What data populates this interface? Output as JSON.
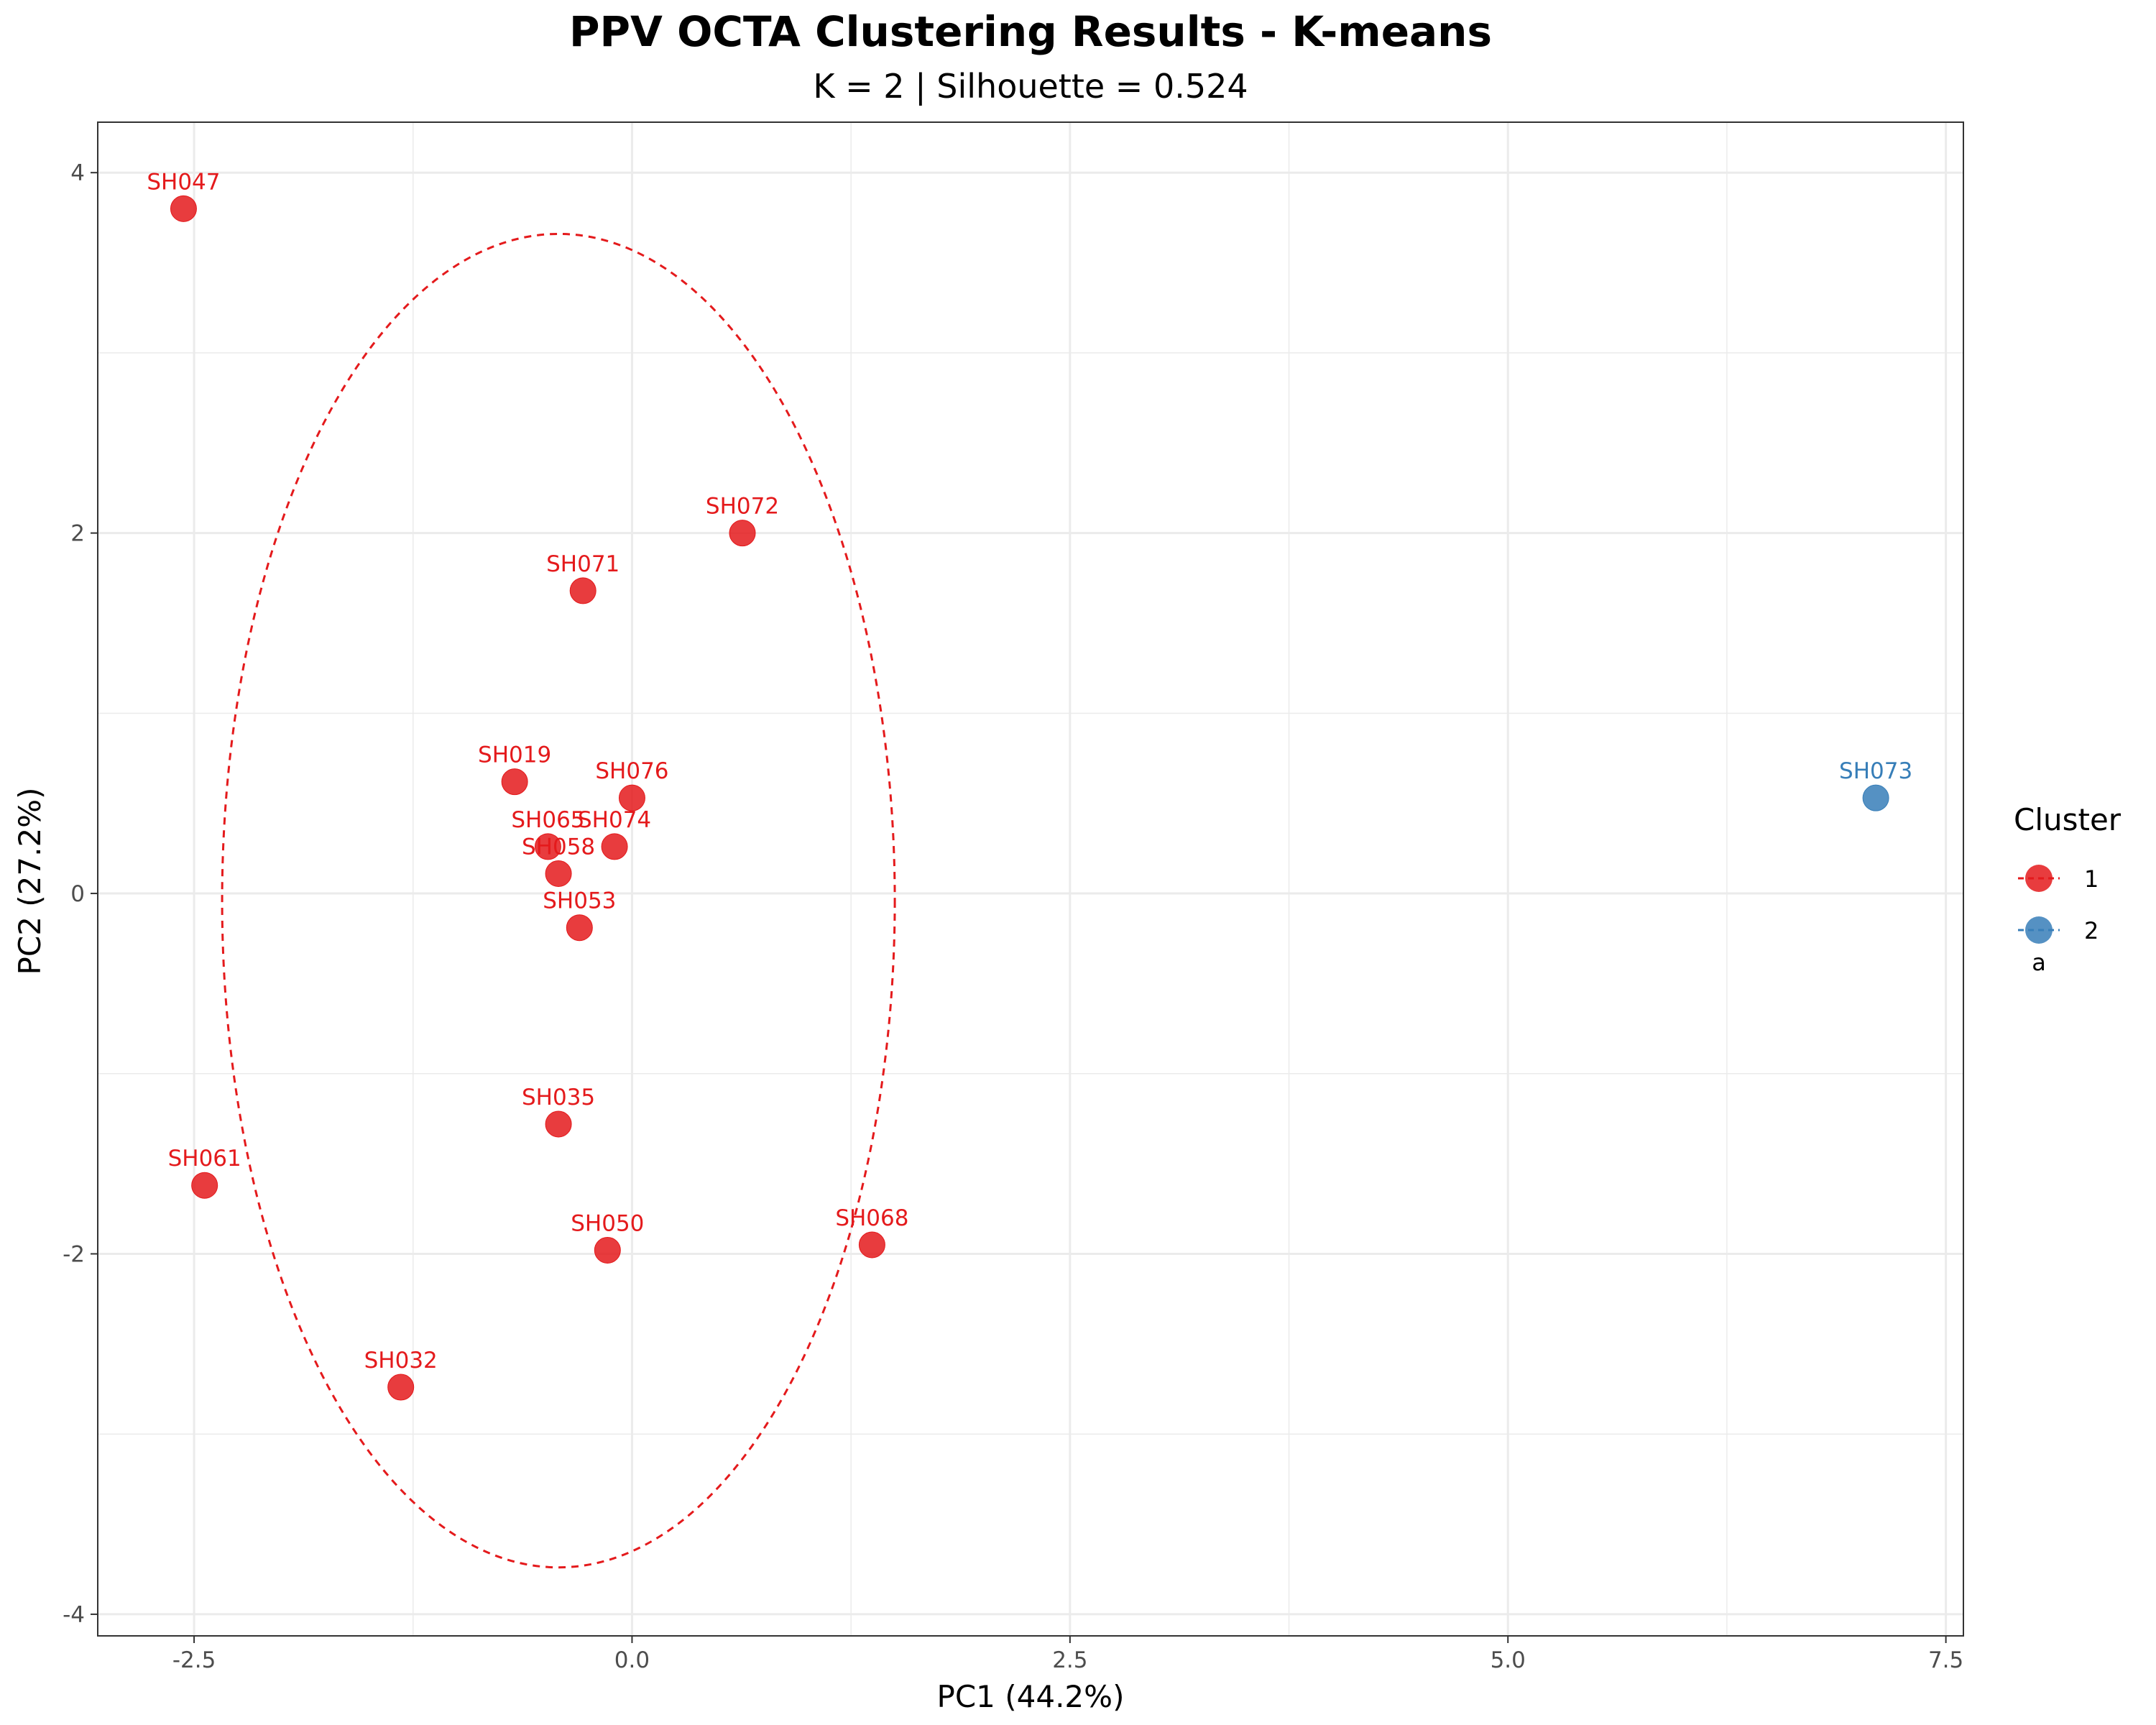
{
  "chart_data": {
    "type": "scatter",
    "title": "PPV OCTA Clustering Results - K-means",
    "subtitle": "K = 2 | Silhouette = 0.524",
    "xlabel": "PC1 (44.2%)",
    "ylabel": "PC2 (27.2%)",
    "xlim": [
      -3.05,
      7.6
    ],
    "ylim": [
      -4.12,
      4.28
    ],
    "x_ticks": [
      -2.5,
      0.0,
      2.5,
      5.0,
      7.5
    ],
    "x_tick_labels": [
      "-2.5",
      "0.0",
      "2.5",
      "5.0",
      "7.5"
    ],
    "y_ticks": [
      -4,
      -2,
      0,
      2,
      4
    ],
    "y_tick_labels": [
      "-4",
      "-2",
      "0",
      "2",
      "4"
    ],
    "grid": true,
    "legend": {
      "title": "Cluster",
      "position": "right",
      "entries": [
        {
          "label": "1",
          "color": "#E41A1C"
        },
        {
          "label": "2",
          "color": "#377EB8"
        }
      ],
      "extra_text": "a"
    },
    "series": [
      {
        "name": "1",
        "color": "#E41A1C",
        "points": [
          {
            "label": "SH047",
            "x": -2.56,
            "y": 3.8
          },
          {
            "label": "SH072",
            "x": 0.63,
            "y": 2.0
          },
          {
            "label": "SH071",
            "x": -0.28,
            "y": 1.68
          },
          {
            "label": "SH019",
            "x": -0.67,
            "y": 0.62
          },
          {
            "label": "SH076",
            "x": 0.0,
            "y": 0.53
          },
          {
            "label": "SH065",
            "x": -0.48,
            "y": 0.26
          },
          {
            "label": "SH074",
            "x": -0.1,
            "y": 0.26
          },
          {
            "label": "SH058",
            "x": -0.42,
            "y": 0.11
          },
          {
            "label": "SH053",
            "x": -0.3,
            "y": -0.19
          },
          {
            "label": "SH035",
            "x": -0.42,
            "y": -1.28
          },
          {
            "label": "SH061",
            "x": -2.44,
            "y": -1.62
          },
          {
            "label": "SH068",
            "x": 1.37,
            "y": -1.95
          },
          {
            "label": "SH050",
            "x": -0.14,
            "y": -1.98
          },
          {
            "label": "SH032",
            "x": -1.32,
            "y": -2.74
          }
        ],
        "ellipse": {
          "cx": -0.42,
          "cy": -0.04,
          "rx": 1.92,
          "ry": 3.7,
          "style": "dashed"
        }
      },
      {
        "name": "2",
        "color": "#377EB8",
        "points": [
          {
            "label": "SH073",
            "x": 7.1,
            "y": 0.53
          }
        ]
      }
    ]
  }
}
